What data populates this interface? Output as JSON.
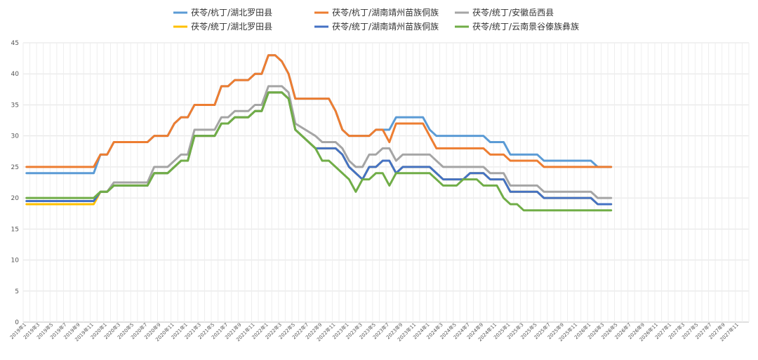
{
  "chart_data": {
    "type": "line",
    "title": "",
    "xlabel": "",
    "ylabel": "",
    "ylim": [
      0,
      45
    ],
    "y_ticks": [
      0,
      5,
      10,
      15,
      20,
      25,
      30,
      35,
      40,
      45
    ],
    "grid": true,
    "legend_position": "top",
    "x_start": "2019-01",
    "x_labels": [
      "2019年1",
      "2019年3",
      "2019年5",
      "2019年7",
      "2019年9",
      "2019年11",
      "2020年1",
      "2020年3",
      "2020年5",
      "2020年7",
      "2020年9",
      "2020年11",
      "2021年1",
      "2021年3",
      "2021年5",
      "2021年7",
      "2021年9",
      "2021年11",
      "2022年1",
      "2022年3",
      "2022年5",
      "2022年7",
      "2022年9",
      "2022年11",
      "2023年1",
      "2023年3",
      "2023年5",
      "2023年7",
      "2023年9",
      "2023年11",
      "2024年1",
      "2024年3",
      "2024年5",
      "2024年7",
      "2024年9",
      "2024年11",
      "2025年1",
      "2025年3",
      "2025年5",
      "2025年7",
      "2025年9",
      "2025年11",
      "2026年1",
      "2026年3",
      "2026年5",
      "2026年7",
      "2026年9",
      "2026年11",
      "2027年1",
      "2027年3",
      "2027年5",
      "2027年7",
      "2027年9",
      "2027年11"
    ],
    "series": [
      {
        "name": "茯苓/杭丁/湖北罗田县",
        "color": "#5b9bd5",
        "points": [
          [
            0,
            24
          ],
          [
            10,
            24
          ],
          [
            11,
            27
          ],
          [
            12,
            27
          ],
          [
            13,
            29
          ],
          [
            18,
            29
          ],
          [
            19,
            30
          ],
          [
            21,
            30
          ],
          [
            22,
            32
          ],
          [
            23,
            33
          ],
          [
            24,
            33
          ],
          [
            25,
            35
          ],
          [
            28,
            35
          ],
          [
            29,
            38
          ],
          [
            30,
            38
          ],
          [
            31,
            39
          ],
          [
            33,
            39
          ],
          [
            34,
            40
          ],
          [
            35,
            40
          ],
          [
            36,
            43
          ],
          [
            37,
            43
          ],
          [
            38,
            42
          ],
          [
            39,
            40
          ],
          [
            40,
            36
          ],
          [
            45,
            36
          ],
          [
            46,
            34
          ],
          [
            47,
            31
          ],
          [
            48,
            30
          ],
          [
            51,
            30
          ],
          [
            52,
            31
          ],
          [
            54,
            31
          ],
          [
            55,
            33
          ],
          [
            59,
            33
          ],
          [
            60,
            31
          ],
          [
            61,
            30
          ],
          [
            68,
            30
          ],
          [
            69,
            29
          ],
          [
            71,
            29
          ],
          [
            72,
            27
          ],
          [
            76,
            27
          ],
          [
            77,
            26
          ],
          [
            84,
            26
          ],
          [
            85,
            25
          ],
          [
            87,
            25
          ]
        ]
      },
      {
        "name": "茯苓/杭丁/湖南靖州苗族侗族",
        "color": "#ed7d31",
        "points": [
          [
            0,
            25
          ],
          [
            10,
            25
          ],
          [
            11,
            27
          ],
          [
            12,
            27
          ],
          [
            13,
            29
          ],
          [
            18,
            29
          ],
          [
            19,
            30
          ],
          [
            21,
            30
          ],
          [
            22,
            32
          ],
          [
            23,
            33
          ],
          [
            24,
            33
          ],
          [
            25,
            35
          ],
          [
            28,
            35
          ],
          [
            29,
            38
          ],
          [
            30,
            38
          ],
          [
            31,
            39
          ],
          [
            33,
            39
          ],
          [
            34,
            40
          ],
          [
            35,
            40
          ],
          [
            36,
            43
          ],
          [
            37,
            43
          ],
          [
            38,
            42
          ],
          [
            39,
            40
          ],
          [
            40,
            36
          ],
          [
            45,
            36
          ],
          [
            46,
            34
          ],
          [
            47,
            31
          ],
          [
            48,
            30
          ],
          [
            51,
            30
          ],
          [
            52,
            31
          ],
          [
            53,
            31
          ],
          [
            54,
            29
          ],
          [
            55,
            32
          ],
          [
            59,
            32
          ],
          [
            60,
            30
          ],
          [
            61,
            28
          ],
          [
            68,
            28
          ],
          [
            69,
            27
          ],
          [
            71,
            27
          ],
          [
            72,
            26
          ],
          [
            76,
            26
          ],
          [
            77,
            25
          ],
          [
            87,
            25
          ]
        ]
      },
      {
        "name": "茯苓/统丁/安徽岳西县",
        "color": "#a5a5a5",
        "points": [
          [
            0,
            19.5
          ],
          [
            10,
            19.5
          ],
          [
            11,
            21
          ],
          [
            12,
            21
          ],
          [
            13,
            22.5
          ],
          [
            18,
            22.5
          ],
          [
            19,
            25
          ],
          [
            21,
            25
          ],
          [
            22,
            26
          ],
          [
            23,
            27
          ],
          [
            24,
            27
          ],
          [
            25,
            31
          ],
          [
            28,
            31
          ],
          [
            29,
            33
          ],
          [
            30,
            33
          ],
          [
            31,
            34
          ],
          [
            33,
            34
          ],
          [
            34,
            35
          ],
          [
            35,
            35
          ],
          [
            36,
            38
          ],
          [
            38,
            38
          ],
          [
            39,
            37
          ],
          [
            40,
            32
          ],
          [
            43,
            30
          ],
          [
            44,
            29
          ],
          [
            46,
            29
          ],
          [
            47,
            28
          ],
          [
            48,
            26
          ],
          [
            49,
            25
          ],
          [
            50,
            25
          ],
          [
            51,
            27
          ],
          [
            52,
            27
          ],
          [
            53,
            28
          ],
          [
            54,
            28
          ],
          [
            55,
            26
          ],
          [
            56,
            27
          ],
          [
            60,
            27
          ],
          [
            61,
            26
          ],
          [
            62,
            25
          ],
          [
            68,
            25
          ],
          [
            69,
            24
          ],
          [
            71,
            24
          ],
          [
            72,
            22
          ],
          [
            76,
            22
          ],
          [
            77,
            21
          ],
          [
            84,
            21
          ],
          [
            85,
            20
          ],
          [
            87,
            20
          ]
        ]
      },
      {
        "name": "茯苓/统丁/湖北罗田县",
        "color": "#ffc000",
        "points": [
          [
            0,
            19
          ],
          [
            10,
            19
          ],
          [
            11,
            21
          ],
          [
            12,
            21
          ],
          [
            13,
            22
          ],
          [
            18,
            22
          ],
          [
            19,
            24
          ],
          [
            21,
            24
          ],
          [
            22,
            25
          ],
          [
            23,
            26
          ],
          [
            24,
            26
          ],
          [
            25,
            30
          ],
          [
            28,
            30
          ],
          [
            29,
            32
          ],
          [
            30,
            32
          ],
          [
            31,
            33
          ],
          [
            33,
            33
          ],
          [
            34,
            34
          ],
          [
            35,
            34
          ],
          [
            36,
            37
          ],
          [
            38,
            37
          ],
          [
            39,
            36
          ],
          [
            40,
            31
          ],
          [
            43,
            28
          ],
          [
            46,
            28
          ],
          [
            47,
            27
          ],
          [
            48,
            25
          ],
          [
            50,
            23
          ],
          [
            51,
            25
          ],
          [
            52,
            25
          ],
          [
            53,
            26
          ],
          [
            54,
            26
          ],
          [
            55,
            24
          ],
          [
            56,
            25
          ],
          [
            60,
            25
          ],
          [
            61,
            24
          ],
          [
            62,
            23
          ],
          [
            65,
            23
          ],
          [
            66,
            24
          ],
          [
            68,
            24
          ],
          [
            69,
            23
          ],
          [
            71,
            23
          ],
          [
            72,
            21
          ],
          [
            76,
            21
          ],
          [
            77,
            20
          ],
          [
            84,
            20
          ],
          [
            85,
            19
          ],
          [
            87,
            19
          ]
        ]
      },
      {
        "name": "茯苓/统丁/湖南靖州苗族侗族",
        "color": "#4472c4",
        "points": [
          [
            0,
            19.5
          ],
          [
            10,
            19.5
          ],
          [
            11,
            21
          ],
          [
            12,
            21
          ],
          [
            13,
            22
          ],
          [
            18,
            22
          ],
          [
            19,
            24
          ],
          [
            21,
            24
          ],
          [
            22,
            25
          ],
          [
            23,
            26
          ],
          [
            24,
            26
          ],
          [
            25,
            30
          ],
          [
            28,
            30
          ],
          [
            29,
            32
          ],
          [
            30,
            32
          ],
          [
            31,
            33
          ],
          [
            33,
            33
          ],
          [
            34,
            34
          ],
          [
            35,
            34
          ],
          [
            36,
            37
          ],
          [
            38,
            37
          ],
          [
            39,
            36
          ],
          [
            40,
            31
          ],
          [
            43,
            28
          ],
          [
            46,
            28
          ],
          [
            47,
            27
          ],
          [
            48,
            25
          ],
          [
            50,
            23
          ],
          [
            51,
            25
          ],
          [
            52,
            25
          ],
          [
            53,
            26
          ],
          [
            54,
            26
          ],
          [
            55,
            24
          ],
          [
            56,
            25
          ],
          [
            60,
            25
          ],
          [
            61,
            24
          ],
          [
            62,
            23
          ],
          [
            65,
            23
          ],
          [
            66,
            24
          ],
          [
            68,
            24
          ],
          [
            69,
            23
          ],
          [
            71,
            23
          ],
          [
            72,
            21
          ],
          [
            76,
            21
          ],
          [
            77,
            20
          ],
          [
            84,
            20
          ],
          [
            85,
            19
          ],
          [
            87,
            19
          ]
        ]
      },
      {
        "name": "茯苓/统丁/云南景谷傣族彝族",
        "color": "#70ad47",
        "points": [
          [
            0,
            20
          ],
          [
            10,
            20
          ],
          [
            11,
            21
          ],
          [
            12,
            21
          ],
          [
            13,
            22
          ],
          [
            18,
            22
          ],
          [
            19,
            24
          ],
          [
            21,
            24
          ],
          [
            22,
            25
          ],
          [
            23,
            26
          ],
          [
            24,
            26
          ],
          [
            25,
            30
          ],
          [
            28,
            30
          ],
          [
            29,
            32
          ],
          [
            30,
            32
          ],
          [
            31,
            33
          ],
          [
            33,
            33
          ],
          [
            34,
            34
          ],
          [
            35,
            34
          ],
          [
            36,
            37
          ],
          [
            38,
            37
          ],
          [
            39,
            36
          ],
          [
            40,
            31
          ],
          [
            43,
            28
          ],
          [
            44,
            26
          ],
          [
            45,
            26
          ],
          [
            46,
            25
          ],
          [
            48,
            23
          ],
          [
            49,
            21
          ],
          [
            50,
            23
          ],
          [
            51,
            23
          ],
          [
            52,
            24
          ],
          [
            53,
            24
          ],
          [
            54,
            22
          ],
          [
            55,
            24
          ],
          [
            60,
            24
          ],
          [
            61,
            23
          ],
          [
            62,
            22
          ],
          [
            64,
            22
          ],
          [
            65,
            23
          ],
          [
            67,
            23
          ],
          [
            68,
            22
          ],
          [
            70,
            22
          ],
          [
            71,
            20
          ],
          [
            72,
            19
          ],
          [
            73,
            19
          ],
          [
            74,
            18
          ],
          [
            87,
            18
          ]
        ]
      }
    ]
  }
}
